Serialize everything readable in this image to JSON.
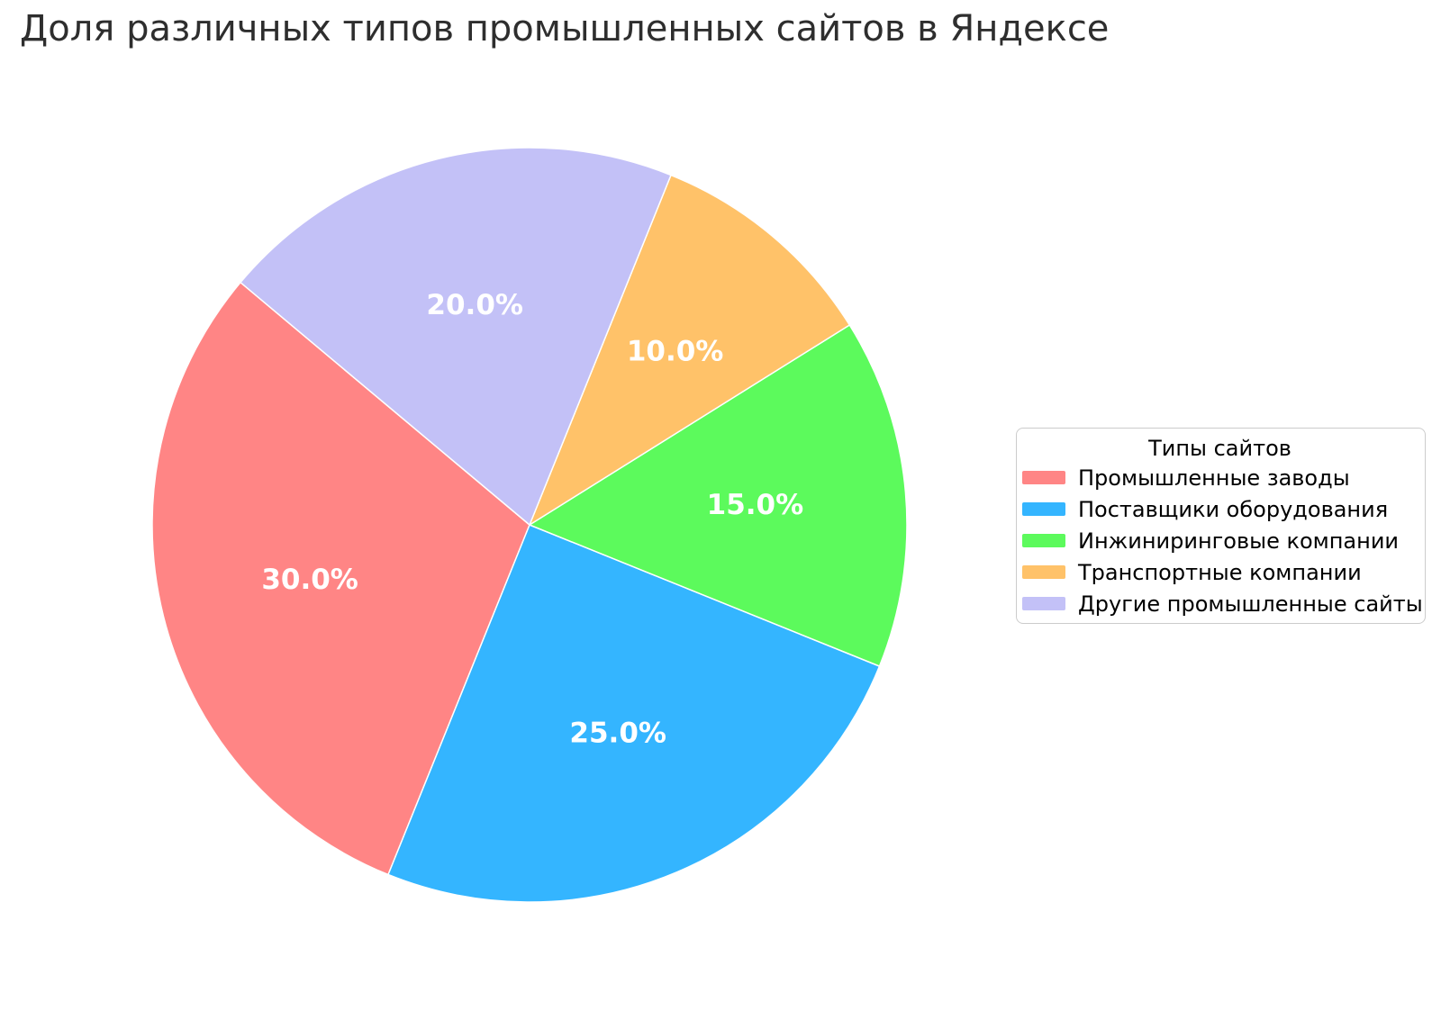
{
  "title": "Доля различных типов промышленных сайтов в Яндексе",
  "chart_data": {
    "type": "pie",
    "title": "Доля различных типов промышленных сайтов в Яндексе",
    "labels": [
      "Промышленные заводы",
      "Поставщики оборудования",
      "Инжиниринговые компании",
      "Транспортные компании",
      "Другие промышленные сайты"
    ],
    "values": [
      30,
      25,
      15,
      10,
      20
    ],
    "pct_labels": [
      "30.0%",
      "25.0%",
      "15.0%",
      "10.0%",
      "20.0%"
    ],
    "colors": [
      "#FF8585",
      "#34B5FF",
      "#5CFA5C",
      "#FFC269",
      "#C3C1F7"
    ],
    "start_angle_deg": 140,
    "direction": "counterclockwise",
    "pct_label_distance": 0.6,
    "pct_label_color": "#ffffff",
    "legend": {
      "title": "Типы сайтов",
      "position": "center right"
    }
  }
}
